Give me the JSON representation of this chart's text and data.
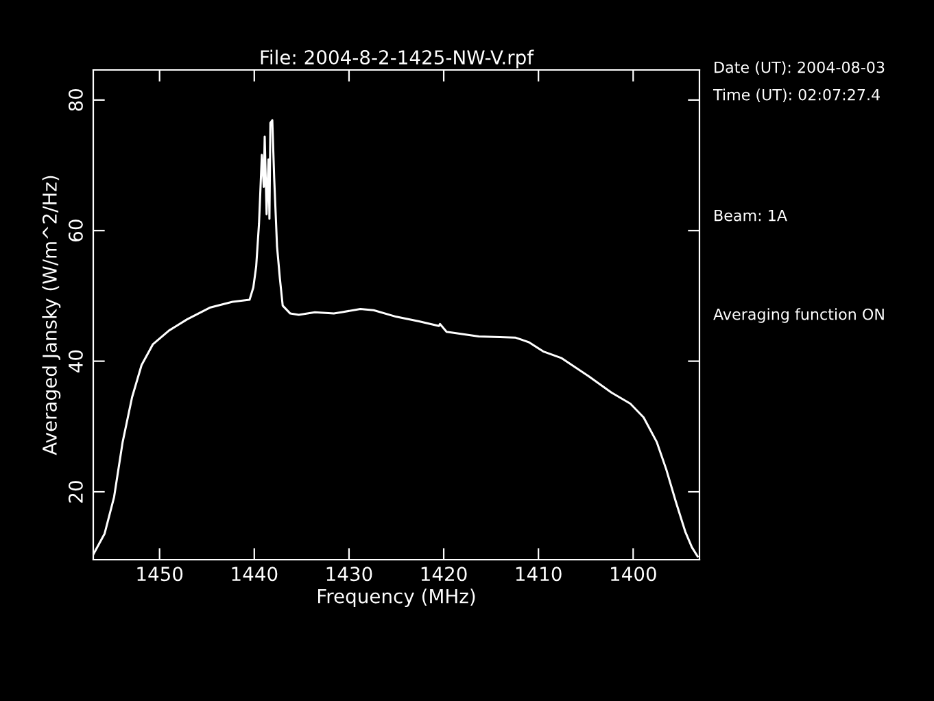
{
  "chart_data": {
    "type": "line",
    "title": "File: 2004-8-2-1425-NW-V.rpf",
    "xlabel": "Frequency (MHz)",
    "ylabel": "Averaged Jansky (W/m^2/Hz)",
    "annotations": [
      "Date (UT): 2004-08-03",
      "Time (UT): 02:07:27.4",
      "Beam: 1A",
      "Averaging function ON"
    ],
    "xlim": [
      1457,
      1393
    ],
    "ylim": [
      9.6,
      84.6
    ],
    "xticks": [
      1450,
      1440,
      1430,
      1420,
      1410,
      1400
    ],
    "yticks": [
      20,
      40,
      60,
      80
    ],
    "grid": false,
    "legend": false,
    "series": [
      {
        "color": "#ffffff",
        "x": [
          1457.0,
          1455.8,
          1454.8,
          1453.9,
          1452.9,
          1451.9,
          1450.7,
          1449.0,
          1447.1,
          1444.7,
          1442.3,
          1440.5,
          1440.1,
          1439.8,
          1439.5,
          1439.2,
          1439.0,
          1438.9,
          1438.7,
          1438.5,
          1438.4,
          1438.3,
          1438.1,
          1437.9,
          1437.6,
          1437.3,
          1437.0,
          1436.2,
          1435.3,
          1433.6,
          1431.6,
          1430.8,
          1428.8,
          1427.4,
          1425.0,
          1422.6,
          1420.5,
          1420.4,
          1419.7,
          1416.3,
          1412.4,
          1411.0,
          1409.5,
          1407.6,
          1404.7,
          1402.3,
          1400.3,
          1398.9,
          1397.5,
          1396.5,
          1395.5,
          1394.5,
          1393.8,
          1393.2
        ],
        "values": [
          10.4,
          13.6,
          19.2,
          27.6,
          34.5,
          39.4,
          42.6,
          44.7,
          46.4,
          48.2,
          49.1,
          49.4,
          51.3,
          54.5,
          61.1,
          71.6,
          66.7,
          74.4,
          62.5,
          70.9,
          61.8,
          76.5,
          76.9,
          68.1,
          57.6,
          52.7,
          48.5,
          47.3,
          47.1,
          47.5,
          47.3,
          47.5,
          48.0,
          47.8,
          46.8,
          46.1,
          45.4,
          45.7,
          44.5,
          43.8,
          43.6,
          42.9,
          41.5,
          40.5,
          37.7,
          35.2,
          33.5,
          31.4,
          27.6,
          23.4,
          18.5,
          13.9,
          11.5,
          10.1
        ]
      }
    ]
  }
}
